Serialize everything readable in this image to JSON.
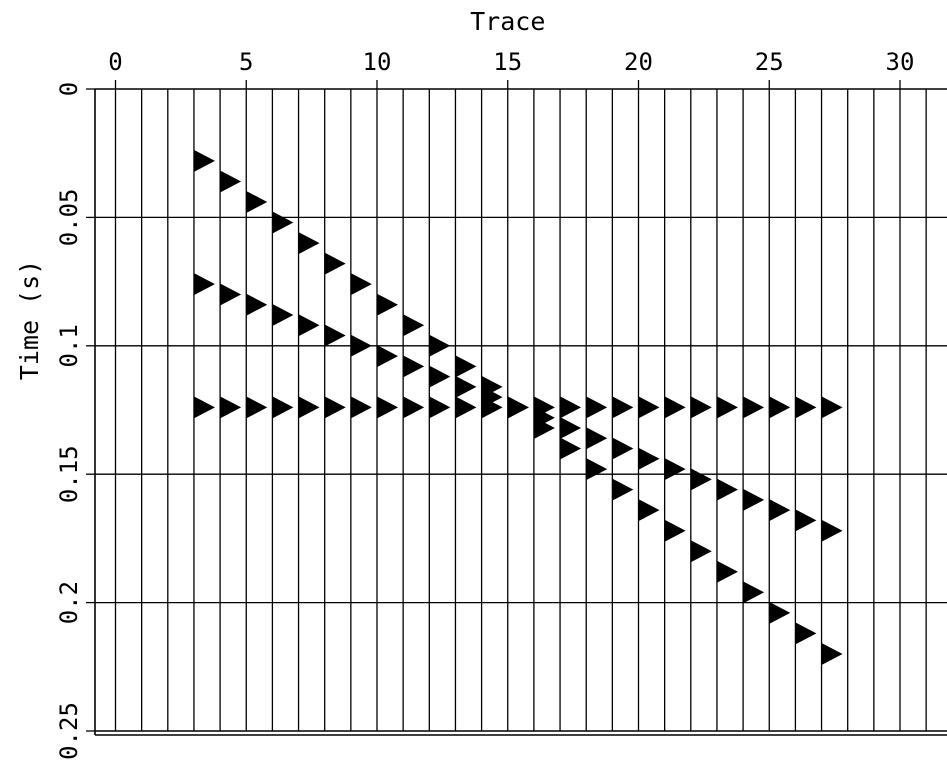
{
  "chart_data": {
    "type": "seismic-wiggle",
    "title": "",
    "xlabel": "Trace",
    "ylabel": "Time (s)",
    "x_axis_position": "top",
    "y_axis_reversed": true,
    "xlim": [
      -0.8,
      32
    ],
    "ylim": [
      0,
      0.25
    ],
    "x_ticks": [
      0,
      5,
      10,
      15,
      20,
      25,
      30
    ],
    "x_tick_labels": [
      "0",
      "5",
      "10",
      "15",
      "20",
      "25",
      "30"
    ],
    "y_ticks": [
      0,
      0.05,
      0.1,
      0.15,
      0.2,
      0.25
    ],
    "y_tick_labels": [
      "0",
      "0.05",
      "0.1",
      "0.15",
      "0.2",
      "0.25"
    ],
    "traces": [
      0,
      1,
      2,
      3,
      4,
      5,
      6,
      7,
      8,
      9,
      10,
      11,
      12,
      13,
      14,
      15,
      16,
      17,
      18,
      19,
      20,
      21,
      22,
      23,
      24,
      25,
      26,
      27,
      28,
      29,
      30,
      31
    ],
    "grid": true,
    "series": [
      {
        "traces": [
          3,
          4,
          5,
          6,
          7,
          8,
          9,
          10,
          11,
          12,
          13,
          14,
          15,
          16,
          17,
          18,
          19,
          20,
          21,
          22,
          23,
          24,
          25,
          26,
          27
        ],
        "times": [
          0.028,
          0.036,
          0.044,
          0.052,
          0.06,
          0.068,
          0.076,
          0.084,
          0.092,
          0.1,
          0.108,
          0.116,
          0.124,
          0.132,
          0.14,
          0.148,
          0.156,
          0.164,
          0.172,
          0.18,
          0.188,
          0.196,
          0.204,
          0.212,
          0.22
        ]
      },
      {
        "traces": [
          3,
          4,
          5,
          6,
          7,
          8,
          9,
          10,
          11,
          12,
          13,
          14,
          15,
          16,
          17,
          18,
          19,
          20,
          21,
          22,
          23,
          24,
          25,
          26,
          27
        ],
        "times": [
          0.076,
          0.08,
          0.084,
          0.088,
          0.092,
          0.096,
          0.1,
          0.104,
          0.108,
          0.112,
          0.116,
          0.12,
          0.124,
          0.128,
          0.132,
          0.136,
          0.14,
          0.144,
          0.148,
          0.152,
          0.156,
          0.16,
          0.164,
          0.168,
          0.172
        ]
      },
      {
        "traces": [
          3,
          4,
          5,
          6,
          7,
          8,
          9,
          10,
          11,
          12,
          13,
          14,
          15,
          16,
          17,
          18,
          19,
          20,
          21,
          22,
          23,
          24,
          25,
          26,
          27
        ],
        "times": [
          0.124,
          0.124,
          0.124,
          0.124,
          0.124,
          0.124,
          0.124,
          0.124,
          0.124,
          0.124,
          0.124,
          0.124,
          0.124,
          0.124,
          0.124,
          0.124,
          0.124,
          0.124,
          0.124,
          0.124,
          0.124,
          0.124,
          0.124,
          0.124,
          0.124
        ]
      }
    ]
  }
}
